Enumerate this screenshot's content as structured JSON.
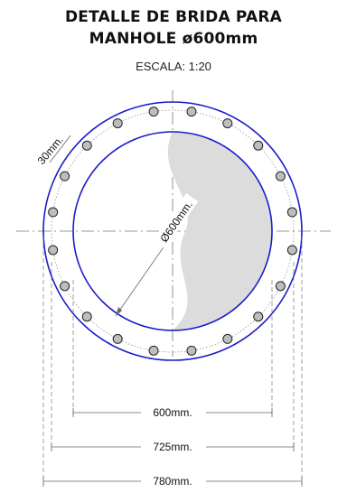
{
  "title": {
    "line1": "DETALLE DE BRIDA PARA",
    "line2": "MANHOLE ø600mm"
  },
  "subtitle": "ESCALA: 1:20",
  "annotations": {
    "flange_width": "30mm.",
    "inner_diameter": "Ø600mm."
  },
  "dimensions": [
    {
      "label": "600mm."
    },
    {
      "label": "725mm."
    },
    {
      "label": "780mm."
    }
  ],
  "bolt_count": 20,
  "colors": {
    "ring": "#1a1acc",
    "shading": "#dcdcdc",
    "bolt_fill": "#bdbdbd",
    "lines": "#666666"
  }
}
